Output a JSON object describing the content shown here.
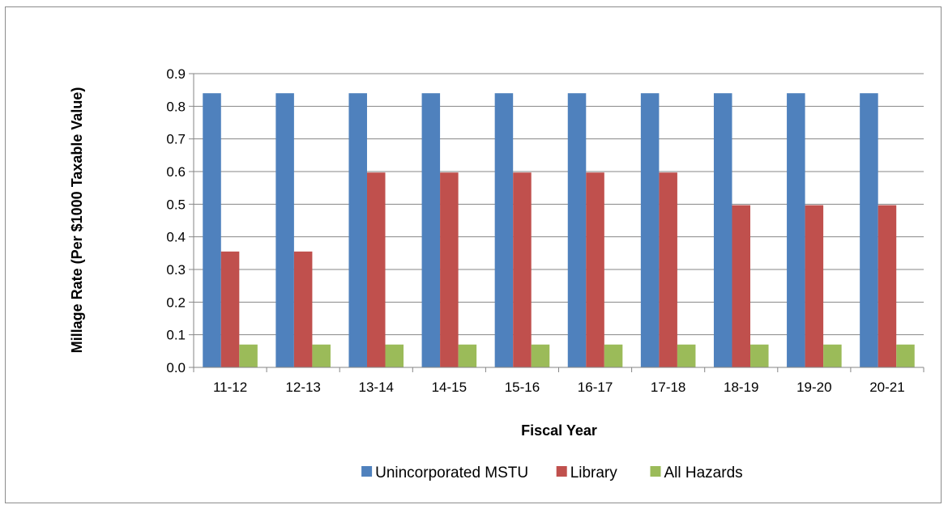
{
  "chart_data": {
    "type": "bar",
    "title": "",
    "xlabel": "Fiscal Year",
    "ylabel": "Millage Rate (Per $1000 Taxable Value)",
    "ylim": [
      0,
      0.9
    ],
    "yticks": [
      "0.0",
      "0.1",
      "0.2",
      "0.3",
      "0.4",
      "0.5",
      "0.6",
      "0.7",
      "0.8",
      "0.9"
    ],
    "grid": true,
    "legend_position": "bottom",
    "categories": [
      "11-12",
      "12-13",
      "13-14",
      "14-15",
      "15-16",
      "16-17",
      "17-18",
      "18-19",
      "19-20",
      "20-21"
    ],
    "series": [
      {
        "name": "Unincorporated MSTU",
        "color": "#4f81bd",
        "values": [
          0.84,
          0.84,
          0.84,
          0.84,
          0.84,
          0.84,
          0.84,
          0.84,
          0.84,
          0.84
        ]
      },
      {
        "name": "Library",
        "color": "#c0504d",
        "values": [
          0.355,
          0.355,
          0.597,
          0.597,
          0.597,
          0.597,
          0.597,
          0.497,
          0.497,
          0.497
        ]
      },
      {
        "name": "All Hazards",
        "color": "#9bbb59",
        "values": [
          0.07,
          0.07,
          0.07,
          0.07,
          0.07,
          0.07,
          0.07,
          0.07,
          0.07,
          0.07
        ]
      }
    ]
  }
}
